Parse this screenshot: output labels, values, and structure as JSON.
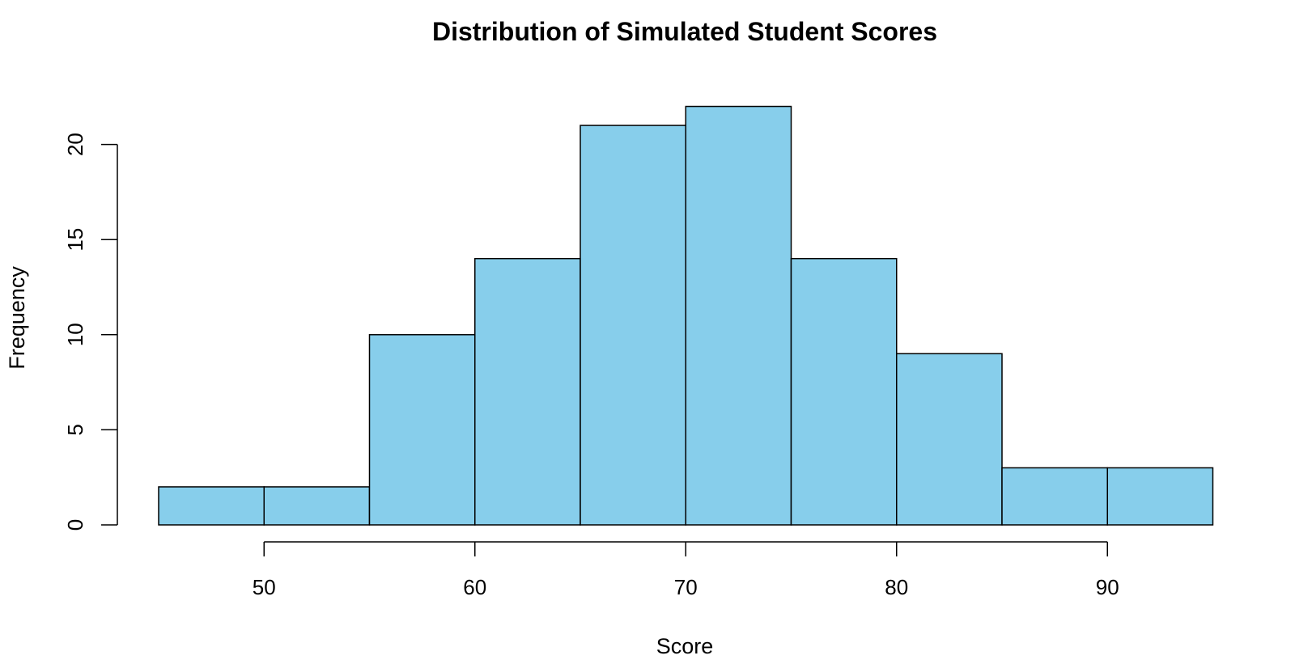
{
  "chart_data": {
    "type": "bar",
    "title": "Distribution of Simulated Student Scores",
    "xlabel": "Score",
    "ylabel": "Frequency",
    "bins": [
      {
        "start": 45,
        "end": 50,
        "count": 2
      },
      {
        "start": 50,
        "end": 55,
        "count": 2
      },
      {
        "start": 55,
        "end": 60,
        "count": 10
      },
      {
        "start": 60,
        "end": 65,
        "count": 14
      },
      {
        "start": 65,
        "end": 70,
        "count": 21
      },
      {
        "start": 70,
        "end": 75,
        "count": 22
      },
      {
        "start": 75,
        "end": 80,
        "count": 14
      },
      {
        "start": 80,
        "end": 85,
        "count": 9
      },
      {
        "start": 85,
        "end": 90,
        "count": 3
      },
      {
        "start": 90,
        "end": 95,
        "count": 3
      }
    ],
    "x_ticks": [
      50,
      60,
      70,
      80,
      90
    ],
    "y_ticks": [
      0,
      5,
      10,
      15,
      20
    ],
    "xlim": [
      45,
      95
    ],
    "ylim": [
      0,
      22
    ],
    "bar_color": "#87CEEB",
    "edge_color": "#000000",
    "grid": false
  }
}
